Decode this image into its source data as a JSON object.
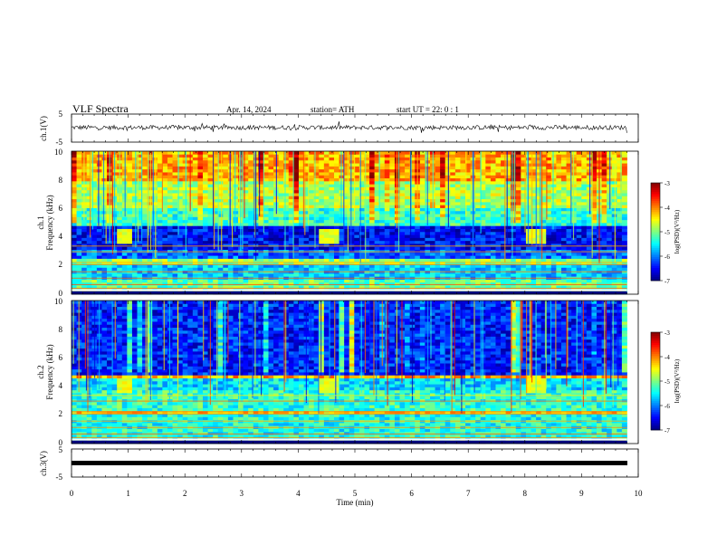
{
  "header": {
    "title": "VLF  Spectra",
    "date": "Apr. 14, 2024",
    "station": "station= ATH",
    "start": "start  UT  =    22: 0   : 1"
  },
  "panels": {
    "ch1_wave": {
      "ylabel": "ch.1(V)",
      "ticks": [
        "5",
        "-5"
      ]
    },
    "ch1_spec": {
      "ylabel_ch": "ch.1",
      "ylabel": "Frequency  (kHz)",
      "ticks": [
        "10",
        "8",
        "6",
        "4",
        "2",
        "0"
      ]
    },
    "ch2_spec": {
      "ylabel_ch": "ch.2",
      "ylabel": "Frequency  (kHz)",
      "ticks": [
        "10",
        "8",
        "6",
        "4",
        "2",
        "0"
      ]
    },
    "ch3_wave": {
      "ylabel": "ch.3(V)",
      "ticks": [
        "5",
        "-5"
      ]
    }
  },
  "xaxis": {
    "label": "Time  (min)",
    "ticks": [
      "0",
      "1",
      "2",
      "3",
      "4",
      "5",
      "6",
      "7",
      "8",
      "9",
      "10"
    ]
  },
  "colorbar": {
    "label": "log(PSD)(V²/Hz)",
    "ticks": [
      "-3",
      "-4",
      "-5",
      "-6",
      "-7"
    ]
  },
  "chart_data": {
    "type": "heatmap",
    "title": "VLF  Spectra",
    "x_range_min": [
      0,
      10
    ],
    "data_extent_min": 9.8,
    "freq_range_khz": [
      0,
      10
    ],
    "color_range_log_psd": [
      -7,
      -3
    ],
    "wave_range_v": [
      -5,
      5
    ],
    "ch1_band_levels": [
      {
        "f": [
          0,
          0.3
        ],
        "v": -6.3
      },
      {
        "f": [
          0.3,
          1.0
        ],
        "v": -5.1
      },
      {
        "f": [
          1.0,
          2.0
        ],
        "v": -5.7
      },
      {
        "f": [
          2.0,
          2.4
        ],
        "v": -4.9
      },
      {
        "f": [
          2.4,
          3.2
        ],
        "v": -6.1
      },
      {
        "f": [
          3.2,
          4.8
        ],
        "v": -6.5
      },
      {
        "f": [
          4.8,
          6.0
        ],
        "v": -5.3
      },
      {
        "f": [
          6.0,
          8.0
        ],
        "v": -4.8
      },
      {
        "f": [
          8.0,
          10.0
        ],
        "v": -4.2
      }
    ],
    "ch2_band_levels": [
      {
        "f": [
          0,
          0.3
        ],
        "v": -6.3
      },
      {
        "f": [
          0.3,
          2.0
        ],
        "v": -5.4
      },
      {
        "f": [
          2.0,
          2.3
        ],
        "v": -4.3
      },
      {
        "f": [
          2.3,
          3.8
        ],
        "v": -5.3
      },
      {
        "f": [
          3.8,
          4.6
        ],
        "v": -5.6
      },
      {
        "f": [
          4.6,
          4.8
        ],
        "v": -4.2
      },
      {
        "f": [
          4.8,
          10.0
        ],
        "v": -6.4
      }
    ],
    "sferic_blocks_min": [
      [
        0.8,
        1.1
      ],
      [
        4.4,
        4.7
      ],
      [
        8.05,
        8.35
      ]
    ],
    "ch3_constant_v": -1.5
  }
}
